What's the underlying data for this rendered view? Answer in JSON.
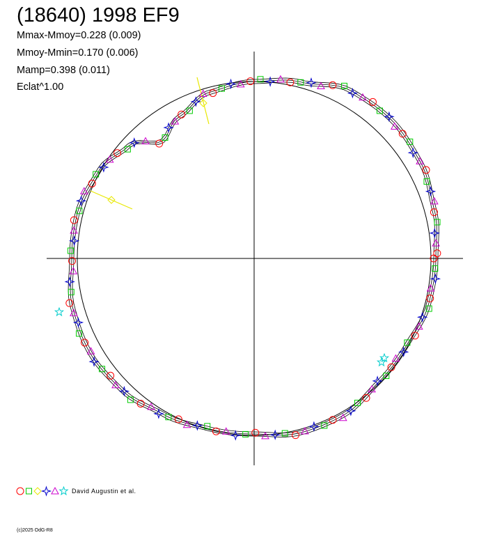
{
  "chart_data": {
    "type": "scatter",
    "title": "(18640) 1998 EF9",
    "stats": [
      "Mmax-Mmoy=0.228 (0.009)",
      "Mmoy-Mmin=0.170 (0.006)",
      "Mamp=0.398 (0.011)",
      "Eclat^1.00"
    ],
    "legend_label": "David Augustin et al.",
    "legend_symbols": [
      "circle",
      "square",
      "diamond",
      "star4",
      "triangle",
      "star6"
    ],
    "symbol_colors": {
      "circle": "#ff0000",
      "square": "#00cc00",
      "diamond": "#e8e800",
      "star4": "#0000cc",
      "triangle": "#cc00cc",
      "star6": "#00cccc"
    },
    "reference_circle_color": "#000000",
    "curve_color": "#000000"
  },
  "footer": "(c)2025 OdG-R8"
}
